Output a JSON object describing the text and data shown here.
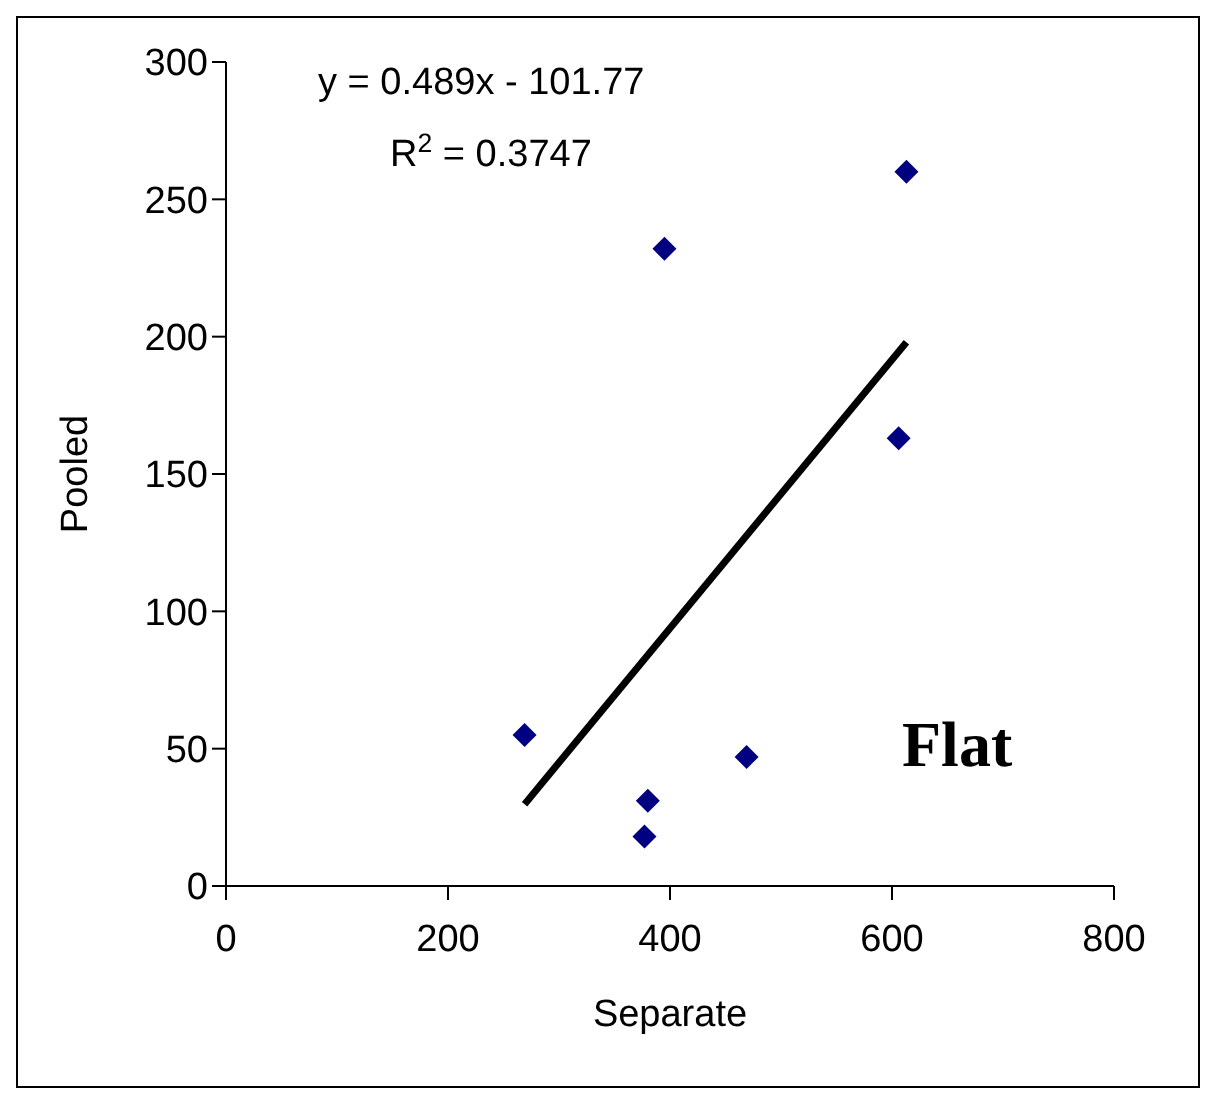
{
  "chart_data": {
    "type": "scatter",
    "xlabel": "Separate",
    "ylabel": "Pooled",
    "xlim": [
      0,
      800
    ],
    "xticks": [
      0,
      200,
      400,
      600,
      800
    ],
    "ylim": [
      0,
      300
    ],
    "yticks": [
      0,
      50,
      100,
      150,
      200,
      250,
      300
    ],
    "grid": false,
    "legend": false,
    "annotations": [
      "y = 0.489x - 101.77",
      "R$^{2}$ = 0.3747",
      "Flat"
    ],
    "series": [
      {
        "marker": "diamond",
        "color": "#000080",
        "x": [
          269,
          380,
          377,
          469,
          395,
          613,
          606
        ],
        "values": [
          55,
          31,
          18,
          47,
          232,
          260,
          163
        ]
      },
      {
        "type": "line",
        "marker": "none",
        "color": "#000000",
        "x": [
          269,
          613
        ],
        "values": [
          29.8,
          198
        ]
      }
    ]
  }
}
